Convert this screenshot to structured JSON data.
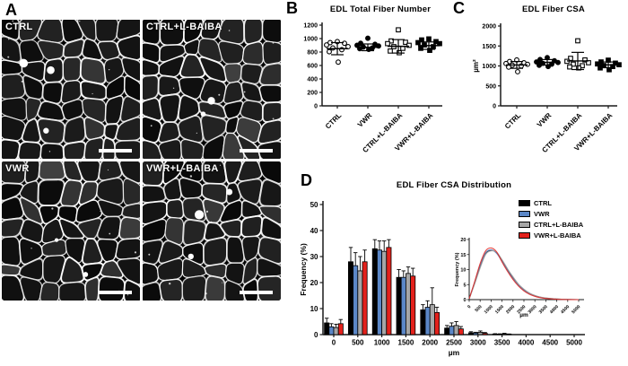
{
  "figure": {
    "panels": {
      "a": {
        "letter": "A",
        "micrographs": [
          {
            "label": "CTRL"
          },
          {
            "label": "CTRL+L-BAIBA"
          },
          {
            "label": "VWR"
          },
          {
            "label": "VWR+L-BAIBA"
          }
        ]
      },
      "b": {
        "letter": "B"
      },
      "c": {
        "letter": "C"
      },
      "d": {
        "letter": "D"
      }
    }
  },
  "colors": {
    "ctrl": "#000000",
    "vwr": "#5b87c7",
    "ctrl_l_baiba": "#a6a6a6",
    "vwr_l_baiba": "#e3211b",
    "axis": "#1a1a1a",
    "micrograph_bg": "#000000",
    "fiber_outline": "#ffffff"
  },
  "chart_data": [
    {
      "id": "edl-total-fiber-number",
      "type": "scatter",
      "title": "EDL Total Fiber Number",
      "xlabel": "",
      "ylabel": "",
      "ylim": [
        0,
        1200
      ],
      "ytick_step": 200,
      "categories": [
        "CTRL",
        "VWR",
        "CTRL+L-BAIBA",
        "VWR+L-BAIBA"
      ],
      "groups": [
        {
          "name": "CTRL",
          "marker": "open-circle",
          "mean": 850,
          "sd": 90,
          "points": [
            955,
            940,
            930,
            905,
            880,
            860,
            835,
            805,
            650
          ]
        },
        {
          "name": "VWR",
          "marker": "filled-circle",
          "mean": 870,
          "sd": 50,
          "points": [
            1005,
            930,
            915,
            900,
            890,
            875,
            860,
            850,
            840
          ]
        },
        {
          "name": "CTRL+L-BAIBA",
          "marker": "open-square",
          "mean": 885,
          "sd": 100,
          "points": [
            1130,
            965,
            945,
            925,
            900,
            880,
            855,
            815,
            790
          ]
        },
        {
          "name": "VWR+L-BAIBA",
          "marker": "filled-square",
          "mean": 895,
          "sd": 55,
          "points": [
            995,
            980,
            955,
            940,
            925,
            905,
            880,
            855,
            825
          ]
        }
      ]
    },
    {
      "id": "edl-fiber-csa",
      "type": "scatter",
      "title": "EDL Fiber CSA",
      "xlabel": "",
      "ylabel": "µm²",
      "ylim": [
        0,
        2000
      ],
      "ytick_step": 500,
      "categories": [
        "CTRL",
        "VWR",
        "CTRL+L-BAIBA",
        "VWR+L-BAIBA"
      ],
      "groups": [
        {
          "name": "CTRL",
          "marker": "open-circle",
          "mean": 1025,
          "sd": 85,
          "points": [
            1150,
            1110,
            1080,
            1060,
            1040,
            1020,
            1000,
            970,
            855
          ]
        },
        {
          "name": "VWR",
          "marker": "filled-circle",
          "mean": 1090,
          "sd": 70,
          "points": [
            1210,
            1160,
            1130,
            1100,
            1085,
            1065,
            1045,
            1015,
            985
          ]
        },
        {
          "name": "CTRL+L-BAIBA",
          "marker": "open-square",
          "mean": 1125,
          "sd": 215,
          "points": [
            1630,
            1190,
            1150,
            1115,
            1080,
            1045,
            1005,
            975,
            950
          ]
        },
        {
          "name": "VWR+L-BAIBA",
          "marker": "filled-square",
          "mean": 1027,
          "sd": 72,
          "points": [
            1145,
            1100,
            1070,
            1050,
            1030,
            1010,
            985,
            950,
            905
          ]
        }
      ]
    },
    {
      "id": "edl-fiber-csa-distribution",
      "type": "bar",
      "title": "EDL Fiber CSA Distribution",
      "xlabel": "µm",
      "ylabel": "Frequency (%)",
      "ylim": [
        0,
        50
      ],
      "ytick_step": 10,
      "categories": [
        0,
        500,
        1000,
        1500,
        2000,
        2500,
        3000,
        3500,
        4000,
        4500,
        5000
      ],
      "legend_position": "top-right",
      "series": [
        {
          "name": "CTRL",
          "color": "#000000",
          "values": [
            4.5,
            28,
            33,
            22,
            9.5,
            2.5,
            0.7,
            0.2,
            0,
            0,
            0
          ],
          "errors": [
            1.8,
            5.5,
            3.5,
            3.0,
            2.0,
            1.0,
            0.4,
            0.15,
            0,
            0,
            0
          ]
        },
        {
          "name": "VWR",
          "color": "#5b87c7",
          "values": [
            3.0,
            26.5,
            32.5,
            22,
            10.5,
            3.2,
            0.6,
            0.2,
            0,
            0,
            0
          ],
          "errors": [
            1.2,
            5.0,
            3.5,
            2.5,
            2.5,
            1.3,
            0.3,
            0.1,
            0,
            0,
            0
          ]
        },
        {
          "name": "CTRL+L-BAIBA",
          "color": "#a6a6a6",
          "values": [
            2.7,
            24.5,
            32,
            23.5,
            11.5,
            3.5,
            0.9,
            0.3,
            0,
            0,
            0
          ],
          "errors": [
            1.3,
            5.5,
            4.0,
            2.5,
            6.5,
            1.5,
            0.5,
            0.2,
            0,
            0,
            0
          ]
        },
        {
          "name": "VWR+L-BAIBA",
          "color": "#e3211b",
          "values": [
            4.2,
            28,
            33.5,
            22.5,
            8.5,
            2.2,
            0.5,
            0.15,
            0,
            0,
            0
          ],
          "errors": [
            1.6,
            4.5,
            3.0,
            3.0,
            2.0,
            0.9,
            0.3,
            0.1,
            0,
            0,
            0
          ]
        }
      ]
    },
    {
      "id": "edl-fiber-csa-distribution-inset",
      "type": "line",
      "title": "",
      "xlabel": "µm",
      "ylabel": "Frequency (%)",
      "ylim": [
        0,
        20
      ],
      "ytick_step": 5,
      "x": [
        0,
        250,
        500,
        750,
        1000,
        1250,
        1500,
        1750,
        2000,
        2250,
        2500,
        2750,
        3000,
        3250,
        3500,
        4000,
        4500,
        5000
      ],
      "xtick_labels": [
        0,
        500,
        1000,
        1500,
        2000,
        2500,
        3000,
        3500,
        4000,
        4500,
        5000
      ],
      "series": [
        {
          "name": "CTRL",
          "color": "#000000",
          "values": [
            0.3,
            5.5,
            11.0,
            15.3,
            16.4,
            15.6,
            13.0,
            10.0,
            7.3,
            5.0,
            3.3,
            2.1,
            1.3,
            0.8,
            0.5,
            0.2,
            0.05,
            0
          ]
        },
        {
          "name": "VWR",
          "color": "#5b87c7",
          "values": [
            0.3,
            5.8,
            11.5,
            15.6,
            16.6,
            15.4,
            12.7,
            9.7,
            7.0,
            4.8,
            3.1,
            2.0,
            1.2,
            0.7,
            0.45,
            0.15,
            0.05,
            0
          ]
        },
        {
          "name": "CTRL+L-BAIBA",
          "color": "#a6a6a6",
          "values": [
            0.3,
            5.2,
            10.5,
            15.0,
            16.2,
            15.8,
            13.3,
            10.3,
            7.6,
            5.2,
            3.5,
            2.2,
            1.4,
            0.85,
            0.55,
            0.2,
            0.05,
            0
          ]
        },
        {
          "name": "VWR+L-BAIBA",
          "color": "#e3211b",
          "values": [
            0.3,
            6.0,
            12.0,
            16.2,
            17.2,
            15.9,
            12.5,
            9.4,
            6.7,
            4.5,
            2.9,
            1.8,
            1.1,
            0.65,
            0.4,
            0.12,
            0.03,
            0
          ]
        }
      ]
    }
  ]
}
